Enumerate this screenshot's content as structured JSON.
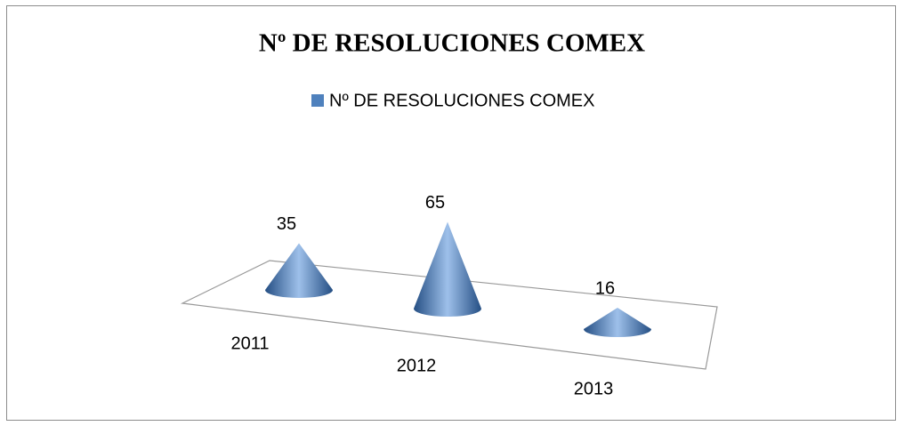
{
  "chart_data": {
    "type": "cone",
    "title": "Nº DE RESOLUCIONES COMEX",
    "categories": [
      "2011",
      "2012",
      "2013"
    ],
    "series": [
      {
        "name": "Nº DE RESOLUCIONES COMEX",
        "color": "#4f81bd",
        "values": [
          35,
          65,
          16
        ]
      }
    ],
    "legend": "top"
  }
}
